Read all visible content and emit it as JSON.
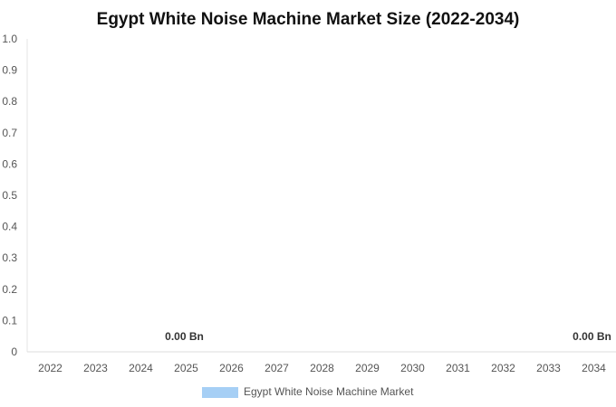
{
  "chart_data": {
    "type": "bar",
    "title": "Egypt White Noise Machine Market Size (2022-2034)",
    "xlabel": "",
    "ylabel": "",
    "categories": [
      "2022",
      "2023",
      "2024",
      "2025",
      "2026",
      "2027",
      "2028",
      "2029",
      "2030",
      "2031",
      "2032",
      "2033",
      "2034"
    ],
    "series": [
      {
        "name": "Egypt White Noise Machine Market",
        "values": [
          0,
          0,
          0,
          0,
          0,
          0,
          0,
          0,
          0,
          0,
          0,
          0,
          0
        ],
        "color": "#a6cff5"
      }
    ],
    "data_labels": [
      {
        "category": "2025",
        "text": "0.00 Bn"
      },
      {
        "category": "2034",
        "text": "0.00 Bn"
      }
    ],
    "yticks": [
      "0",
      "0.1",
      "0.2",
      "0.3",
      "0.4",
      "0.5",
      "0.6",
      "0.7",
      "0.8",
      "0.9",
      "1.0"
    ],
    "ylim": [
      0,
      1.0
    ],
    "grid": false,
    "legend_position": "bottom"
  }
}
